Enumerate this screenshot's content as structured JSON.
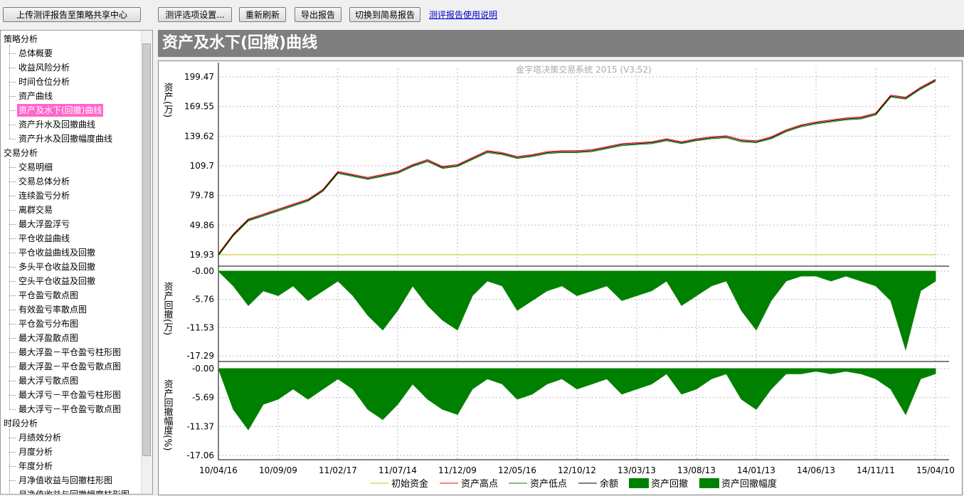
{
  "toolbar": {
    "buttons": [
      "上传测评报告至策略共享中心",
      "测评选项设置...",
      "重新刷新",
      "导出报告",
      "切换到简易报告"
    ],
    "link": "测评报告使用说明"
  },
  "tree": {
    "groups": [
      {
        "label": "策略分析",
        "items": [
          "总体概要",
          "收益风险分析",
          "时间仓位分析",
          "资产曲线",
          "资产及水下(回撤)曲线",
          "资产升水及回撤曲线",
          "资产升水及回撤幅度曲线"
        ],
        "selected_index": 4
      },
      {
        "label": "交易分析",
        "items": [
          "交易明细",
          "交易总体分析",
          "连续盈亏分析",
          "离群交易",
          "最大浮盈浮亏",
          "平仓收益曲线",
          "平仓收益曲线及回撤",
          "多头平仓收益及回撤",
          "空头平仓收益及回撤",
          "平仓盈亏散点图",
          "有效盈亏率散点图",
          "平仓盈亏分布图",
          "最大浮盈散点图",
          "最大浮盈－平仓盈亏柱形图",
          "最大浮盈－平仓盈亏散点图",
          "最大浮亏散点图",
          "最大浮亏－平仓盈亏柱形图",
          "最大浮亏－平仓盈亏散点图"
        ]
      },
      {
        "label": "时段分析",
        "items": [
          "月绩效分析",
          "月度分析",
          "年度分析",
          "月净值收益与回撤柱形图",
          "月净值收益与回撤幅度柱形图"
        ]
      }
    ]
  },
  "panel_title": "资产及水下(回撤)曲线",
  "chart_data": [
    {
      "type": "line",
      "title": "金字塔决策交易系统 2015 (V3.52)",
      "ylabel": "资产(万)",
      "ylim": [
        8.4,
        208.1
      ],
      "yticks": [
        19.93,
        49.86,
        79.78,
        109.7,
        139.62,
        169.55,
        199.47
      ],
      "grid": true,
      "series": [
        {
          "name": "初始资金",
          "color": "#c8c800",
          "values": [
            20,
            20,
            20,
            20,
            20,
            20,
            20,
            20,
            20,
            20,
            20,
            20,
            20,
            20,
            20,
            20,
            20,
            20,
            20,
            20,
            20,
            20,
            20,
            20,
            20,
            20,
            20,
            20,
            20,
            20,
            20,
            20,
            20,
            20,
            20,
            20,
            20,
            20,
            20,
            20,
            20,
            20,
            20,
            20,
            20,
            20,
            20,
            20,
            20
          ]
        },
        {
          "name": "资产高点",
          "color": "#ff0000",
          "values": [
            21,
            41,
            56,
            61,
            66,
            71,
            76,
            86,
            104,
            101,
            98,
            101,
            104,
            111,
            116,
            109,
            111,
            118,
            125,
            123,
            119,
            121,
            124,
            125,
            125,
            126,
            129,
            132,
            133,
            134,
            137,
            134,
            137,
            139,
            140,
            136,
            135,
            139,
            146,
            151,
            154,
            156,
            158,
            159,
            163,
            181,
            179,
            189,
            197
          ]
        },
        {
          "name": "资产低点",
          "color": "#008000",
          "values": [
            19,
            39,
            54,
            59,
            64,
            69,
            74,
            84,
            102,
            99,
            96,
            99,
            102,
            109,
            114,
            107,
            109,
            116,
            123,
            121,
            117,
            119,
            122,
            123,
            123,
            124,
            127,
            130,
            131,
            132,
            135,
            132,
            135,
            137,
            138,
            134,
            133,
            137,
            144,
            149,
            152,
            154,
            156,
            157,
            161,
            179,
            177,
            187,
            195
          ]
        },
        {
          "name": "余额",
          "color": "#000000",
          "values": [
            20,
            40,
            55,
            60,
            65,
            70,
            75,
            85,
            103,
            100,
            97,
            100,
            103,
            110,
            115,
            108,
            110,
            117,
            124,
            122,
            118,
            120,
            123,
            124,
            124,
            125,
            128,
            131,
            132,
            133,
            136,
            133,
            136,
            138,
            139,
            135,
            134,
            138,
            145,
            150,
            153,
            155,
            157,
            158,
            162,
            180,
            178,
            188,
            196
          ]
        }
      ]
    },
    {
      "type": "area",
      "ylabel": "资产回撤(万)",
      "ylim": [
        -18.45,
        0.73
      ],
      "yticks": [
        {
          "value": 0,
          "label": "-0.00"
        },
        -5.76,
        -11.53,
        -17.29
      ],
      "grid": true,
      "series": [
        {
          "name": "资产回撤",
          "color": "#008000",
          "values": [
            0,
            -3,
            -7,
            -4,
            -5,
            -3,
            -6,
            -4,
            -2,
            -5,
            -9,
            -12,
            -8,
            -3,
            -7,
            -10,
            -12,
            -5,
            -2,
            -3,
            -8,
            -6,
            -4,
            -3,
            -5,
            -4,
            -3,
            -6,
            -5,
            -4,
            -2,
            -7,
            -5,
            -3,
            -2,
            -8,
            -12,
            -6,
            -2,
            -1,
            -1,
            -2,
            -1,
            -2,
            -3,
            -6,
            -16,
            -4,
            -2
          ]
        }
      ]
    },
    {
      "type": "area",
      "ylabel": "资产回撤幅度(%)",
      "ylim": [
        -17.9,
        0.7
      ],
      "yticks": [
        {
          "value": 0,
          "label": "-0.00"
        },
        -5.69,
        -11.37,
        -17.06
      ],
      "grid": true,
      "x": [
        "10/04/16",
        null,
        null,
        null,
        "10/09/09",
        null,
        null,
        null,
        "11/02/17",
        null,
        null,
        null,
        "11/07/14",
        null,
        null,
        null,
        "11/12/09",
        null,
        null,
        null,
        "12/05/16",
        null,
        null,
        null,
        "12/10/12",
        null,
        null,
        null,
        "13/03/13",
        null,
        null,
        null,
        "13/08/13",
        null,
        null,
        null,
        "14/01/13",
        null,
        null,
        null,
        "14/06/13",
        null,
        null,
        null,
        "14/11/11",
        null,
        null,
        null,
        "15/04/10"
      ],
      "series": [
        {
          "name": "资产回撤幅度",
          "color": "#008000",
          "values": [
            0,
            -8,
            -12,
            -7,
            -6,
            -4,
            -6,
            -4,
            -2,
            -4,
            -8,
            -10,
            -7,
            -3,
            -6,
            -8,
            -9,
            -4,
            -2,
            -3,
            -6,
            -5,
            -3,
            -2,
            -4,
            -3,
            -2,
            -5,
            -4,
            -3,
            -1,
            -5,
            -4,
            -2,
            -1,
            -6,
            -8,
            -4,
            -1,
            -1,
            -0.5,
            -1,
            -0.5,
            -1,
            -2,
            -4,
            -9,
            -2,
            -1
          ]
        }
      ]
    }
  ]
}
